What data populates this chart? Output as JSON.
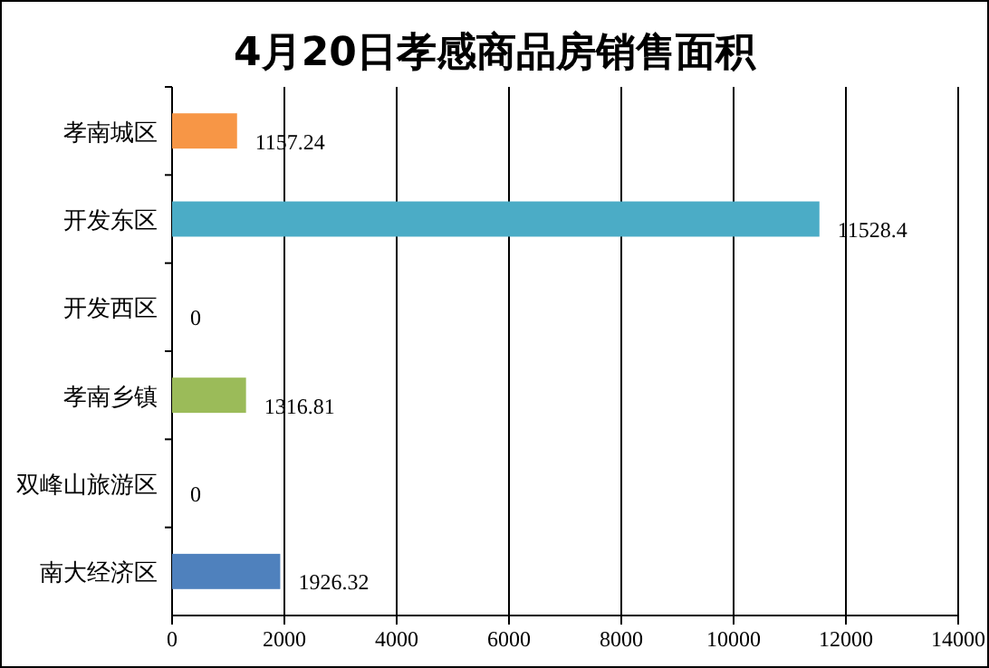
{
  "chart_data": {
    "type": "bar",
    "orientation": "horizontal",
    "title": "4月20日孝感商品房销售面积",
    "categories": [
      "孝南城区",
      "开发东区",
      "开发西区",
      "孝南乡镇",
      "双峰山旅游区",
      "南大经济区"
    ],
    "values": [
      1157.24,
      11528.4,
      0,
      1316.81,
      0,
      1926.32
    ],
    "colors": [
      "#f79646",
      "#4bacc6",
      "#4bacc6",
      "#9bbb59",
      "#9bbb59",
      "#4f81bd"
    ],
    "xlim": [
      0,
      14000
    ],
    "xticks": [
      0,
      2000,
      4000,
      6000,
      8000,
      10000,
      12000,
      14000
    ],
    "grid": "x",
    "data_labels": true
  }
}
